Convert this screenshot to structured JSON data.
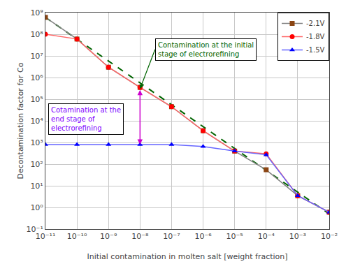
{
  "chart_data": {
    "type": "line",
    "xlabel": "Initial contamination in molten salt [weight fraction]",
    "ylabel": "Decontamination factor for Co",
    "log": true,
    "grid": true,
    "legend": "upper right",
    "xlim": [
      1e-11,
      0.01
    ],
    "ylim": [
      0.1,
      1000000000.0
    ],
    "xticks": [
      {
        "value": 1e-11,
        "label": "10⁻¹¹"
      },
      {
        "value": 1e-10,
        "label": "10⁻¹⁰"
      },
      {
        "value": 1e-09,
        "label": "10⁻⁹"
      },
      {
        "value": 1e-08,
        "label": "10⁻⁸"
      },
      {
        "value": 1e-07,
        "label": "10⁻⁷"
      },
      {
        "value": 1e-06,
        "label": "10⁻⁶"
      },
      {
        "value": 1e-05,
        "label": "10⁻⁵"
      },
      {
        "value": 0.0001,
        "label": "10⁻⁴"
      },
      {
        "value": 0.001,
        "label": "10⁻³"
      },
      {
        "value": 0.01,
        "label": "10⁻²"
      }
    ],
    "yticks": [
      {
        "value": 0.1,
        "label": "10⁻¹"
      },
      {
        "value": 1,
        "label": "10⁰"
      },
      {
        "value": 10,
        "label": "10¹"
      },
      {
        "value": 100,
        "label": "10²"
      },
      {
        "value": 1000,
        "label": "10³"
      },
      {
        "value": 10000,
        "label": "10⁴"
      },
      {
        "value": 100000,
        "label": "10⁵"
      },
      {
        "value": 1000000,
        "label": "10⁶"
      },
      {
        "value": 10000000,
        "label": "10⁷"
      },
      {
        "value": 100000000,
        "label": "10⁸"
      },
      {
        "value": 1000000000,
        "label": "10⁹"
      }
    ],
    "series": [
      {
        "color": "#006400",
        "line_style": "dashed",
        "x": [
          1e-11,
          0.01
        ],
        "values": [
          600000000.0,
          0.5
        ]
      },
      {
        "name": "-2.1V",
        "color": "#808080",
        "marker": "square",
        "marker_color": "#8B4513",
        "line_style": "solid",
        "x": [
          1e-11,
          1e-10,
          1e-09,
          1e-08,
          1e-07,
          1e-06,
          1e-05,
          0.0001,
          0.001,
          0.01
        ],
        "values": [
          600000000.0,
          60000000.0,
          3000000.0,
          350000.0,
          45000.0,
          3500.0,
          400.0,
          55,
          3.5,
          0.6
        ]
      },
      {
        "name": "-1.8V",
        "color": "#ff6666",
        "marker": "circle",
        "marker_color": "#ff0000",
        "line_style": "solid",
        "x": [
          1e-11,
          1e-10,
          1e-09,
          1e-08,
          1e-07,
          1e-06,
          1e-05,
          0.0001,
          0.001,
          0.01
        ],
        "values": [
          100000000.0,
          60000000.0,
          3000000.0,
          350000.0,
          45000.0,
          3500.0,
          400.0,
          300,
          3.5,
          0.6
        ]
      },
      {
        "name": "-1.5V",
        "color": "#6666ff",
        "marker": "triangle-up",
        "marker_color": "#0000ff",
        "line_style": "solid",
        "x": [
          1e-11,
          1e-10,
          1e-09,
          1e-08,
          1e-07,
          1e-06,
          1e-05,
          0.0001,
          0.001,
          0.01
        ],
        "values": [
          800,
          800,
          800,
          800,
          800,
          650,
          400,
          270,
          3.5,
          0.6
        ]
      }
    ],
    "annotations": [
      {
        "text": "Contamination at the initial\nstage of electrorefining",
        "color": "#006400",
        "x": 3e-08,
        "y": 20000000.0,
        "arrow_x": 1e-08,
        "arrow_y": 300000.0
      },
      {
        "text": "Cotamination at the\nend stage of\nelectrorefining",
        "color": "#8000ff",
        "x": 1.2e-11,
        "y": 12000.0
      }
    ],
    "arrows": [
      {
        "x": 1e-08,
        "y_from": 300000.0,
        "y_to": 800,
        "color": "#cc00cc",
        "double": true
      }
    ]
  }
}
